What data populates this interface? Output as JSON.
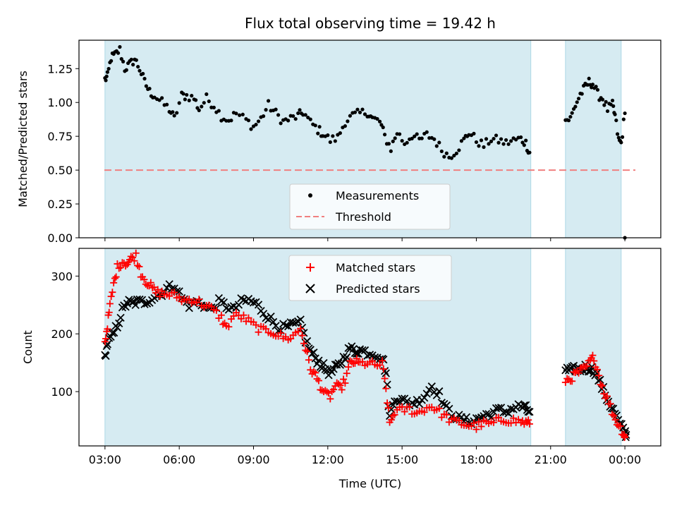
{
  "chart_data": [
    {
      "type": "scatter",
      "title": "Flux total observing time = 19.42 h",
      "xlabel": "",
      "ylabel": "Matched/Predicted stars",
      "xlim": [
        1.95,
        25.45
      ],
      "ylim": [
        0.0,
        1.46
      ],
      "yticks": [
        0.0,
        0.25,
        0.5,
        0.75,
        1.0,
        1.25
      ],
      "ytick_labels": [
        "0.00",
        "0.25",
        "0.50",
        "0.75",
        "1.00",
        "1.25"
      ],
      "grid": false,
      "legend_position": "lower-center",
      "shaded_intervals": [
        [
          3.0,
          20.2
        ],
        [
          21.6,
          23.85
        ]
      ],
      "threshold": {
        "name": "Threshold",
        "value": 0.5,
        "color": "#f08080",
        "style": "dashed"
      },
      "series": [
        {
          "name": "Measurements",
          "color": "#000000",
          "marker": "dot",
          "anchors": [
            [
              3.0,
              1.17
            ],
            [
              3.1,
              1.19
            ],
            [
              3.25,
              1.33
            ],
            [
              3.4,
              1.35
            ],
            [
              3.6,
              1.39
            ],
            [
              3.8,
              1.25
            ],
            [
              4.0,
              1.28
            ],
            [
              4.2,
              1.32
            ],
            [
              4.4,
              1.25
            ],
            [
              4.6,
              1.15
            ],
            [
              4.8,
              1.08
            ],
            [
              5.0,
              1.05
            ],
            [
              5.3,
              1.0
            ],
            [
              5.6,
              0.95
            ],
            [
              5.8,
              0.88
            ],
            [
              6.1,
              1.05
            ],
            [
              6.3,
              1.05
            ],
            [
              6.6,
              1.03
            ],
            [
              6.8,
              0.95
            ],
            [
              7.1,
              1.03
            ],
            [
              7.4,
              0.98
            ],
            [
              7.7,
              0.9
            ],
            [
              8.0,
              0.87
            ],
            [
              8.3,
              0.92
            ],
            [
              8.7,
              0.87
            ],
            [
              9.0,
              0.82
            ],
            [
              9.3,
              0.88
            ],
            [
              9.6,
              0.98
            ],
            [
              9.9,
              0.92
            ],
            [
              10.2,
              0.86
            ],
            [
              10.5,
              0.88
            ],
            [
              10.8,
              0.9
            ],
            [
              11.0,
              0.93
            ],
            [
              11.3,
              0.85
            ],
            [
              11.6,
              0.8
            ],
            [
              11.8,
              0.77
            ],
            [
              12.1,
              0.72
            ],
            [
              12.4,
              0.74
            ],
            [
              12.7,
              0.86
            ],
            [
              13.0,
              0.9
            ],
            [
              13.3,
              0.92
            ],
            [
              13.6,
              0.93
            ],
            [
              13.8,
              0.88
            ],
            [
              14.1,
              0.86
            ],
            [
              14.3,
              0.75
            ],
            [
              14.55,
              0.66
            ],
            [
              14.8,
              0.78
            ],
            [
              15.1,
              0.7
            ],
            [
              15.4,
              0.76
            ],
            [
              15.7,
              0.72
            ],
            [
              16.0,
              0.76
            ],
            [
              16.3,
              0.73
            ],
            [
              16.6,
              0.65
            ],
            [
              16.9,
              0.6
            ],
            [
              17.2,
              0.65
            ],
            [
              17.5,
              0.72
            ],
            [
              17.7,
              0.78
            ],
            [
              18.0,
              0.72
            ],
            [
              18.3,
              0.68
            ],
            [
              18.6,
              0.73
            ],
            [
              18.9,
              0.72
            ],
            [
              19.2,
              0.7
            ],
            [
              19.5,
              0.72
            ],
            [
              19.8,
              0.73
            ],
            [
              20.0,
              0.7
            ],
            [
              20.15,
              0.63
            ],
            [
              21.6,
              0.87
            ],
            [
              21.8,
              0.88
            ],
            [
              22.0,
              0.98
            ],
            [
              22.2,
              1.06
            ],
            [
              22.4,
              1.11
            ],
            [
              22.55,
              1.15
            ],
            [
              22.7,
              1.14
            ],
            [
              22.9,
              1.06
            ],
            [
              23.1,
              1.03
            ],
            [
              23.3,
              0.95
            ],
            [
              23.5,
              0.98
            ],
            [
              23.6,
              0.9
            ],
            [
              23.75,
              0.72
            ],
            [
              23.85,
              0.7
            ],
            [
              24.0,
              0.92
            ],
            [
              24.0,
              0.0
            ]
          ]
        },
        {
          "name": "Matched stars",
          "color": "#ff0000",
          "marker": "plus",
          "anchors": [
            [
              3.0,
              185
            ],
            [
              3.1,
              215
            ],
            [
              3.2,
              248
            ],
            [
              3.35,
              285
            ],
            [
              3.5,
              315
            ],
            [
              3.7,
              325
            ],
            [
              3.9,
              322
            ],
            [
              4.05,
              330
            ],
            [
              4.25,
              335
            ],
            [
              4.45,
              305
            ],
            [
              4.65,
              292
            ],
            [
              4.85,
              282
            ],
            [
              5.05,
              272
            ],
            [
              5.3,
              270
            ],
            [
              5.6,
              268
            ],
            [
              5.9,
              265
            ],
            [
              6.2,
              258
            ],
            [
              6.5,
              260
            ],
            [
              6.8,
              255
            ],
            [
              7.1,
              248
            ],
            [
              7.4,
              240
            ],
            [
              7.7,
              228
            ],
            [
              7.9,
              210
            ],
            [
              8.2,
              232
            ],
            [
              8.5,
              230
            ],
            [
              8.8,
              222
            ],
            [
              9.1,
              212
            ],
            [
              9.4,
              205
            ],
            [
              9.7,
              205
            ],
            [
              10.0,
              198
            ],
            [
              10.3,
              192
            ],
            [
              10.6,
              196
            ],
            [
              10.9,
              210
            ],
            [
              11.1,
              175
            ],
            [
              11.3,
              140
            ],
            [
              11.5,
              128
            ],
            [
              11.7,
              110
            ],
            [
              11.9,
              95
            ],
            [
              12.1,
              92
            ],
            [
              12.3,
              110
            ],
            [
              12.5,
              105
            ],
            [
              12.7,
              120
            ],
            [
              12.9,
              148
            ],
            [
              13.1,
              152
            ],
            [
              13.3,
              148
            ],
            [
              13.6,
              150
            ],
            [
              13.9,
              145
            ],
            [
              14.2,
              148
            ],
            [
              14.35,
              105
            ],
            [
              14.5,
              45
            ],
            [
              14.7,
              65
            ],
            [
              15.0,
              68
            ],
            [
              15.3,
              70
            ],
            [
              15.6,
              62
            ],
            [
              15.9,
              70
            ],
            [
              16.2,
              75
            ],
            [
              16.5,
              65
            ],
            [
              16.8,
              55
            ],
            [
              17.1,
              48
            ],
            [
              17.4,
              45
            ],
            [
              17.7,
              42
            ],
            [
              18.0,
              40
            ],
            [
              18.3,
              45
            ],
            [
              18.6,
              44
            ],
            [
              18.9,
              50
            ],
            [
              19.2,
              52
            ],
            [
              19.5,
              50
            ],
            [
              19.8,
              48
            ],
            [
              20.0,
              46
            ],
            [
              20.15,
              44
            ],
            [
              21.6,
              120
            ],
            [
              21.8,
              122
            ],
            [
              22.0,
              130
            ],
            [
              22.2,
              135
            ],
            [
              22.4,
              140
            ],
            [
              22.6,
              152
            ],
            [
              22.75,
              160
            ],
            [
              22.95,
              128
            ],
            [
              23.15,
              100
            ],
            [
              23.35,
              82
            ],
            [
              23.55,
              58
            ],
            [
              23.75,
              42
            ],
            [
              23.95,
              28
            ],
            [
              24.0,
              22
            ]
          ]
        },
        {
          "name": "Predicted stars",
          "color": "#000000",
          "marker": "x",
          "anchors": [
            [
              3.0,
              160
            ],
            [
              3.1,
              185
            ],
            [
              3.3,
              195
            ],
            [
              3.5,
              215
            ],
            [
              3.7,
              240
            ],
            [
              3.9,
              255
            ],
            [
              4.1,
              252
            ],
            [
              4.3,
              255
            ],
            [
              4.6,
              255
            ],
            [
              4.9,
              262
            ],
            [
              5.2,
              268
            ],
            [
              5.5,
              278
            ],
            [
              5.8,
              285
            ],
            [
              6.1,
              262
            ],
            [
              6.4,
              250
            ],
            [
              6.7,
              255
            ],
            [
              7.0,
              250
            ],
            [
              7.3,
              242
            ],
            [
              7.6,
              255
            ],
            [
              7.9,
              248
            ],
            [
              8.2,
              242
            ],
            [
              8.5,
              255
            ],
            [
              8.8,
              258
            ],
            [
              9.1,
              252
            ],
            [
              9.4,
              238
            ],
            [
              9.7,
              225
            ],
            [
              10.0,
              212
            ],
            [
              10.3,
              210
            ],
            [
              10.6,
              215
            ],
            [
              10.9,
              218
            ],
            [
              11.1,
              190
            ],
            [
              11.3,
              170
            ],
            [
              11.5,
              158
            ],
            [
              11.7,
              148
            ],
            [
              11.9,
              140
            ],
            [
              12.1,
              132
            ],
            [
              12.3,
              140
            ],
            [
              12.5,
              148
            ],
            [
              12.7,
              162
            ],
            [
              12.9,
              175
            ],
            [
              13.1,
              170
            ],
            [
              13.3,
              172
            ],
            [
              13.6,
              168
            ],
            [
              13.9,
              165
            ],
            [
              14.2,
              160
            ],
            [
              14.35,
              132
            ],
            [
              14.5,
              55
            ],
            [
              14.7,
              90
            ],
            [
              15.0,
              85
            ],
            [
              15.3,
              80
            ],
            [
              15.6,
              82
            ],
            [
              15.9,
              92
            ],
            [
              16.2,
              110
            ],
            [
              16.5,
              95
            ],
            [
              16.8,
              70
            ],
            [
              17.1,
              58
            ],
            [
              17.4,
              52
            ],
            [
              17.7,
              48
            ],
            [
              18.0,
              52
            ],
            [
              18.3,
              58
            ],
            [
              18.6,
              62
            ],
            [
              18.9,
              68
            ],
            [
              19.2,
              65
            ],
            [
              19.5,
              72
            ],
            [
              19.8,
              75
            ],
            [
              20.0,
              70
            ],
            [
              20.15,
              65
            ],
            [
              21.6,
              138
            ],
            [
              21.8,
              135
            ],
            [
              22.0,
              140
            ],
            [
              22.2,
              138
            ],
            [
              22.4,
              142
            ],
            [
              22.6,
              140
            ],
            [
              22.8,
              135
            ],
            [
              23.0,
              115
            ],
            [
              23.2,
              95
            ],
            [
              23.4,
              78
            ],
            [
              23.6,
              62
            ],
            [
              23.8,
              42
            ],
            [
              24.0,
              30
            ],
            [
              24.05,
              25
            ]
          ]
        }
      ]
    },
    {
      "type": "scatter",
      "title": "",
      "xlabel": "Time (UTC)",
      "ylabel": "Count",
      "xlim": [
        1.95,
        25.45
      ],
      "ylim": [
        6,
        348
      ],
      "yticks": [
        100,
        200,
        300
      ],
      "ytick_labels": [
        "100",
        "200",
        "300"
      ],
      "xticks": [
        3,
        6,
        9,
        12,
        15,
        18,
        21,
        24
      ],
      "xtick_labels": [
        "03:00",
        "06:00",
        "09:00",
        "12:00",
        "15:00",
        "18:00",
        "21:00",
        "00:00"
      ],
      "grid": false,
      "legend_position": "top-center",
      "shaded_intervals": [
        [
          3.0,
          20.2
        ],
        [
          21.6,
          23.85
        ]
      ],
      "series_refs": [
        "Matched stars",
        "Predicted stars"
      ]
    }
  ],
  "legend": {
    "top": [
      "Measurements",
      "Threshold"
    ],
    "bottom": [
      "Matched stars",
      "Predicted stars"
    ]
  },
  "colors": {
    "shade": "#add8e6",
    "frame": "#000000",
    "threshold": "#f08080"
  }
}
